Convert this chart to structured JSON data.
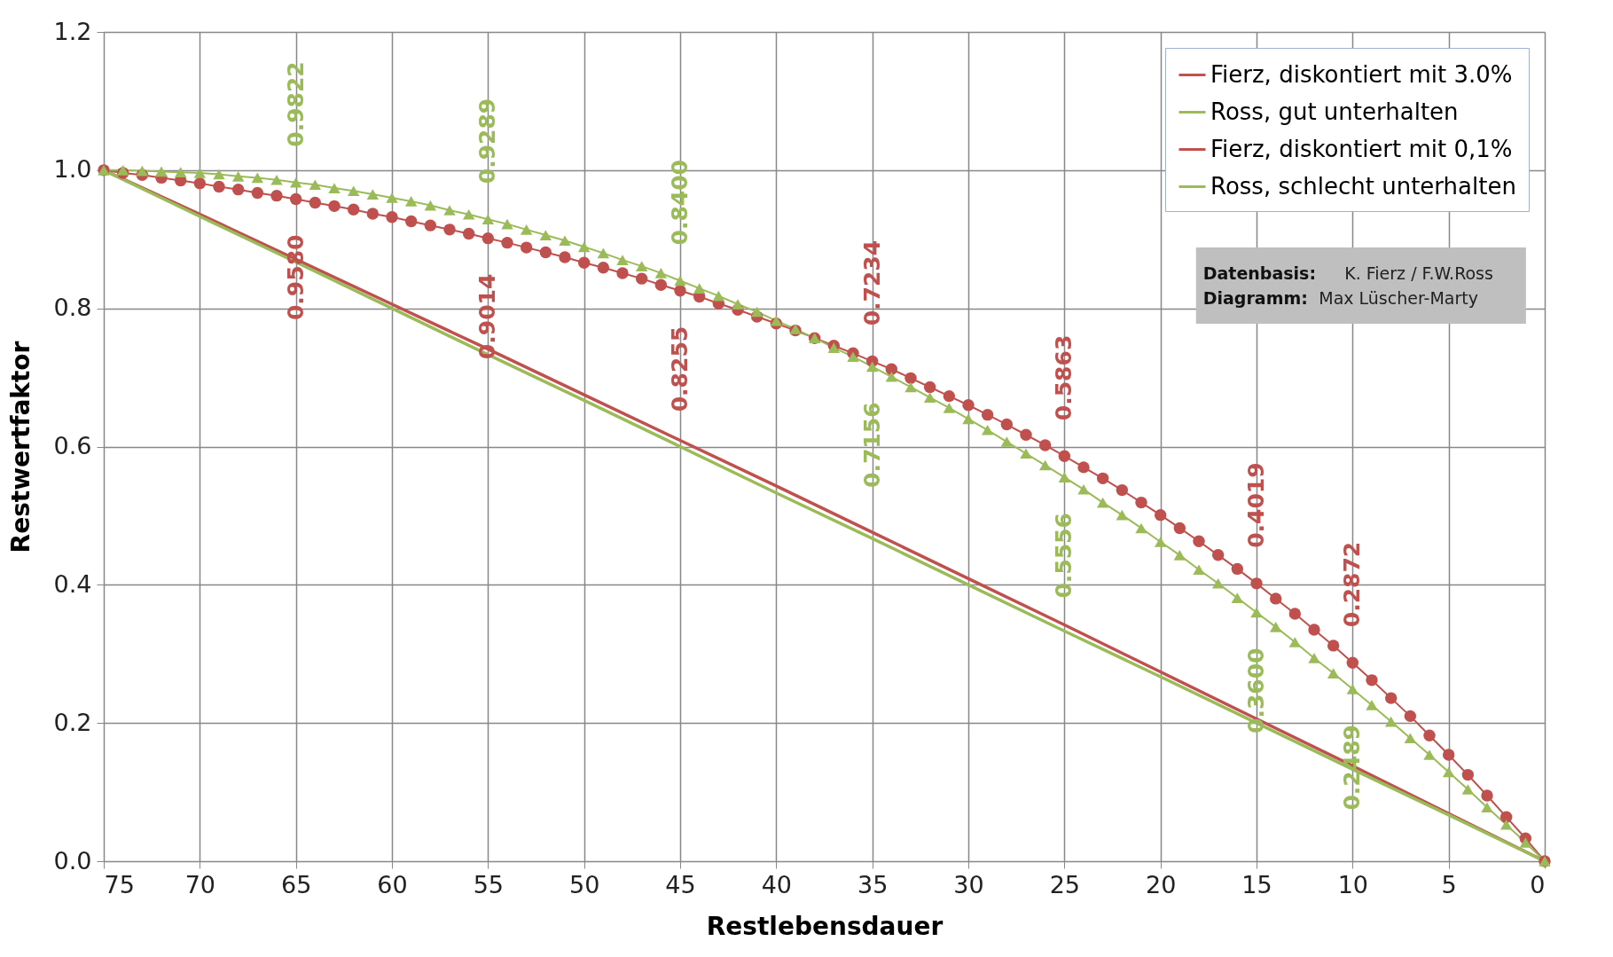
{
  "chart_data": {
    "type": "line",
    "xlabel": "Restlebensdauer",
    "ylabel": "Restwertfaktor",
    "xlim": [
      75,
      0
    ],
    "xticks": [
      75,
      70,
      65,
      60,
      55,
      50,
      45,
      40,
      35,
      30,
      25,
      20,
      15,
      10,
      5,
      0
    ],
    "ylim": [
      0,
      1.2
    ],
    "yticks": [
      {
        "value": 0,
        "label": "0.0"
      },
      0.2,
      0.4,
      0.6,
      0.8,
      {
        "value": 1,
        "label": "1.0"
      },
      1.2
    ],
    "grid": true,
    "legend": "top right",
    "annotations": [
      "Datenbasis: K. Fierz / F.W.Ross",
      "Diagramm: Max Lüscher-Marty"
    ],
    "series": [
      {
        "name": "Fierz, diskontiert mit 3.0%",
        "color": "#c0504d",
        "marker": "circle",
        "line_style": "solid",
        "x": [
          75,
          74,
          73,
          72,
          71,
          70,
          69,
          68,
          67,
          66,
          65,
          64,
          63,
          62,
          61,
          60,
          59,
          58,
          57,
          56,
          55,
          54,
          53,
          52,
          51,
          50,
          49,
          48,
          47,
          46,
          45,
          44,
          43,
          42,
          41,
          40,
          39,
          38,
          37,
          36,
          35,
          34,
          33,
          32,
          31,
          30,
          29,
          28,
          27,
          26,
          25,
          24,
          23,
          22,
          21,
          20,
          19,
          18,
          17,
          16,
          15,
          14,
          13,
          12,
          11,
          10,
          9,
          8,
          7,
          6,
          5,
          4,
          3,
          2,
          1,
          0
        ],
        "values": [
          1,
          0.996,
          0.993,
          0.989,
          0.985,
          0.981,
          0.976,
          0.972,
          0.967,
          0.963,
          0.958,
          0.953,
          0.948,
          0.943,
          0.937,
          0.932,
          0.926,
          0.92,
          0.914,
          0.908,
          0.9014,
          0.895,
          0.888,
          0.881,
          0.874,
          0.866,
          0.859,
          0.851,
          0.843,
          0.834,
          0.8255,
          0.817,
          0.807,
          0.798,
          0.788,
          0.778,
          0.768,
          0.757,
          0.746,
          0.735,
          0.7234,
          0.712,
          0.699,
          0.686,
          0.673,
          0.66,
          0.646,
          0.632,
          0.617,
          0.602,
          0.5863,
          0.57,
          0.554,
          0.537,
          0.519,
          0.501,
          0.482,
          0.463,
          0.443,
          0.423,
          0.4019,
          0.38,
          0.358,
          0.335,
          0.312,
          0.2872,
          0.262,
          0.236,
          0.21,
          0.182,
          0.154,
          0.125,
          0.095,
          0.064,
          0.033,
          0
        ],
        "value_labels": [
          null,
          null,
          null,
          null,
          null,
          null,
          null,
          null,
          null,
          null,
          "0.9580",
          null,
          null,
          null,
          null,
          null,
          null,
          null,
          null,
          null,
          "0.9014",
          null,
          null,
          null,
          null,
          null,
          null,
          null,
          null,
          null,
          "0.8255",
          null,
          null,
          null,
          null,
          null,
          null,
          null,
          null,
          null,
          "0.7234",
          null,
          null,
          null,
          null,
          null,
          null,
          null,
          null,
          null,
          "0.5863",
          null,
          null,
          null,
          null,
          null,
          null,
          null,
          null,
          null,
          "0.4019",
          null,
          null,
          null,
          null,
          "0.2872",
          null,
          null,
          null,
          null,
          null,
          null,
          null,
          null,
          null,
          null
        ]
      },
      {
        "name": "Ross, gut unterhalten",
        "color": "#9bbb59",
        "marker": "triangle",
        "line_style": "solid",
        "x": [
          75,
          74,
          73,
          72,
          71,
          70,
          69,
          68,
          67,
          66,
          65,
          64,
          63,
          62,
          61,
          60,
          59,
          58,
          57,
          56,
          55,
          54,
          53,
          52,
          51,
          50,
          49,
          48,
          47,
          46,
          45,
          44,
          43,
          42,
          41,
          40,
          39,
          38,
          37,
          36,
          35,
          34,
          33,
          32,
          31,
          30,
          29,
          28,
          27,
          26,
          25,
          24,
          23,
          22,
          21,
          20,
          19,
          18,
          17,
          16,
          15,
          14,
          13,
          12,
          11,
          10,
          9,
          8,
          7,
          6,
          5,
          4,
          3,
          2,
          1,
          0
        ],
        "values": [
          1,
          1.0,
          0.999,
          0.998,
          0.997,
          0.996,
          0.994,
          0.991,
          0.989,
          0.986,
          0.9822,
          0.979,
          0.974,
          0.97,
          0.965,
          0.96,
          0.955,
          0.949,
          0.942,
          0.936,
          0.9289,
          0.922,
          0.914,
          0.906,
          0.898,
          0.889,
          0.88,
          0.87,
          0.861,
          0.851,
          0.84,
          0.829,
          0.818,
          0.806,
          0.795,
          0.782,
          0.77,
          0.757,
          0.743,
          0.73,
          0.7156,
          0.701,
          0.686,
          0.671,
          0.656,
          0.64,
          0.624,
          0.607,
          0.59,
          0.573,
          0.5556,
          0.538,
          0.519,
          0.501,
          0.482,
          0.462,
          0.443,
          0.422,
          0.402,
          0.381,
          0.36,
          0.339,
          0.317,
          0.294,
          0.272,
          0.2489,
          0.226,
          0.202,
          0.178,
          0.154,
          0.129,
          0.104,
          0.078,
          0.053,
          0.027,
          0
        ],
        "value_labels": [
          null,
          null,
          null,
          null,
          null,
          null,
          null,
          null,
          null,
          null,
          "0.9822",
          null,
          null,
          null,
          null,
          null,
          null,
          null,
          null,
          null,
          "0.9289",
          null,
          null,
          null,
          null,
          null,
          null,
          null,
          null,
          null,
          "0.8400",
          null,
          null,
          null,
          null,
          null,
          null,
          null,
          null,
          null,
          "0.7156",
          null,
          null,
          null,
          null,
          null,
          null,
          null,
          null,
          null,
          "0.5556",
          null,
          null,
          null,
          null,
          null,
          null,
          null,
          null,
          null,
          "0.3600",
          null,
          null,
          null,
          null,
          "0.2489",
          null,
          null,
          null,
          null,
          null,
          null,
          null,
          null,
          null,
          null
        ]
      },
      {
        "name": "Fierz, diskontiert mit 0,1%",
        "color": "#c0504d",
        "marker": "none",
        "line_style": "solid",
        "x": [
          75,
          70,
          65,
          60,
          55,
          50,
          45,
          40,
          35,
          30,
          25,
          20,
          15,
          10,
          5,
          0
        ],
        "values": [
          1,
          0.936,
          0.871,
          0.806,
          0.741,
          0.675,
          0.609,
          0.543,
          0.476,
          0.409,
          0.342,
          0.274,
          0.206,
          0.138,
          0.069,
          0
        ]
      },
      {
        "name": "Ross, schlecht unterhalten",
        "color": "#9bbb59",
        "marker": "none",
        "line_style": "solid",
        "x": [
          75,
          70,
          65,
          60,
          55,
          50,
          45,
          40,
          35,
          30,
          25,
          20,
          15,
          10,
          5,
          0
        ],
        "values": [
          1,
          0.933,
          0.867,
          0.8,
          0.733,
          0.667,
          0.6,
          0.533,
          0.467,
          0.4,
          0.333,
          0.267,
          0.2,
          0.133,
          0.067,
          0
        ]
      }
    ]
  }
}
